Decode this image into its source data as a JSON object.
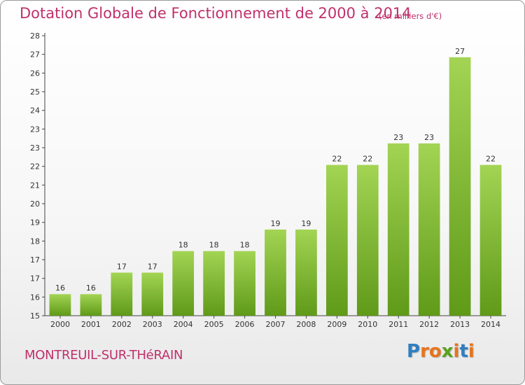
{
  "header": {
    "title": "Dotation Globale de Fonctionnement de 2000 à 2014",
    "unit": "(en milliers d'€)"
  },
  "footer": {
    "commune": "MONTREUIL-SUR-THéRAIN",
    "logo": "Proxiti",
    "logo_colors": [
      "#2f7fc1",
      "#e8741c",
      "#e8741c",
      "#5aa21d",
      "#e8741c",
      "#2f7fc1",
      "#e8741c"
    ]
  },
  "colors": {
    "bar_top": "#a3d454",
    "bar_bottom": "#5f9a18",
    "axis": "#444444",
    "text": "#333333",
    "title": "#c0306a"
  },
  "chart_data": {
    "type": "bar",
    "title": "Dotation Globale de Fonctionnement de 2000 à 2014",
    "subtitle": "(en milliers d'€)",
    "xlabel": "",
    "ylabel": "",
    "categories": [
      "2000",
      "2001",
      "2002",
      "2003",
      "2004",
      "2005",
      "2006",
      "2007",
      "2008",
      "2009",
      "2010",
      "2011",
      "2012",
      "2013",
      "2014"
    ],
    "values": [
      16,
      16,
      17,
      17,
      18,
      18,
      18,
      19,
      19,
      22,
      22,
      23,
      23,
      27,
      22
    ],
    "data_labels": [
      "16",
      "16",
      "17",
      "17",
      "18",
      "18",
      "18",
      "19",
      "19",
      "22",
      "22",
      "23",
      "23",
      "27",
      "22"
    ],
    "y_ticks": [
      "15",
      "16",
      "17",
      "17",
      "18",
      "19",
      "20",
      "21",
      "22",
      "23",
      "23",
      "24",
      "25",
      "26",
      "27",
      "28"
    ],
    "ylim": [
      15,
      28
    ],
    "grid": false,
    "legend": "none"
  }
}
